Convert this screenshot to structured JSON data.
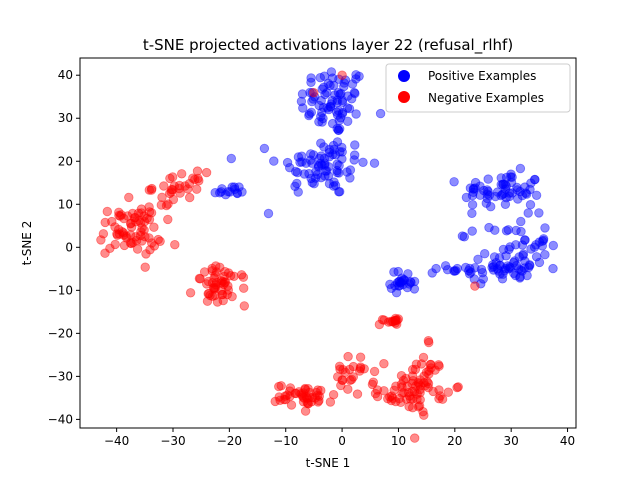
{
  "chart_data": {
    "type": "scatter",
    "title": "t-SNE projected activations layer 22 (refusal_rlhf)",
    "xlabel": "t-SNE 1",
    "ylabel": "t-SNE 2",
    "xlim": [
      -46.5,
      41.5
    ],
    "ylim": [
      -42,
      44
    ],
    "xticks": [
      -40,
      -30,
      -20,
      -10,
      0,
      10,
      20,
      30,
      40
    ],
    "yticks": [
      -40,
      -30,
      -20,
      -10,
      0,
      10,
      20,
      30,
      40
    ],
    "legend": {
      "placement": "top-right"
    },
    "marker_alpha": 0.45,
    "series": [
      {
        "name": "Positive Examples",
        "color": "#0000ff",
        "clusters": [
          {
            "cx": -1.5,
            "cy": 34,
            "sx": 3,
            "sy": 4,
            "n": 75
          },
          {
            "cx": -3.5,
            "cy": 19,
            "sx": 4,
            "sy": 3.5,
            "n": 75
          },
          {
            "cx": -20,
            "cy": 13,
            "sx": 1.6,
            "sy": 0.7,
            "n": 14
          },
          {
            "cx": -13,
            "cy": 8,
            "sx": 0.1,
            "sy": 0.1,
            "n": 1
          },
          {
            "cx": 28.5,
            "cy": 13,
            "sx": 3.5,
            "sy": 2.2,
            "n": 60
          },
          {
            "cx": 31.5,
            "cy": 1,
            "sx": 2.5,
            "sy": 3,
            "n": 35
          },
          {
            "cx": 28,
            "cy": -5,
            "sx": 4.5,
            "sy": 1.5,
            "n": 55
          },
          {
            "cx": 11,
            "cy": -8,
            "sx": 1.2,
            "sy": 1.3,
            "n": 25
          },
          {
            "cx": 21.8,
            "cy": 2.5,
            "sx": 0.5,
            "sy": 0.1,
            "n": 2
          },
          {
            "cx": 16,
            "cy": -6,
            "sx": 0.1,
            "sy": 0.1,
            "n": 1
          }
        ]
      },
      {
        "name": "Negative Examples",
        "color": "#ff0000",
        "clusters": [
          {
            "cx": -37.5,
            "cy": 4,
            "sx": 2.8,
            "sy": 3,
            "n": 70
          },
          {
            "cx": -29,
            "cy": 14,
            "sx": 2.3,
            "sy": 1.7,
            "n": 30
          },
          {
            "cx": -21.5,
            "cy": -9,
            "sx": 2.3,
            "sy": 2.2,
            "n": 50
          },
          {
            "cx": -6.5,
            "cy": -34.5,
            "sx": 2.6,
            "sy": 1.3,
            "n": 45
          },
          {
            "cx": 2,
            "cy": -30,
            "sx": 1.8,
            "sy": 2.2,
            "n": 25
          },
          {
            "cx": 8.5,
            "cy": -17,
            "sx": 0.9,
            "sy": 0.5,
            "n": 15
          },
          {
            "cx": 14,
            "cy": -32,
            "sx": 2.2,
            "sy": 3.2,
            "n": 65
          },
          {
            "cx": 9,
            "cy": -34.5,
            "sx": 1.3,
            "sy": 0.8,
            "n": 12
          },
          {
            "cx": 15.5,
            "cy": -22,
            "sx": 0.1,
            "sy": 0.2,
            "n": 2
          },
          {
            "cx": 23.5,
            "cy": -9,
            "sx": 0.1,
            "sy": 0.1,
            "n": 1
          },
          {
            "cx": 0,
            "cy": 40,
            "sx": 0.1,
            "sy": 0.1,
            "n": 1
          },
          {
            "cx": -5,
            "cy": 36,
            "sx": 0.1,
            "sy": 0.1,
            "n": 1
          }
        ]
      }
    ]
  }
}
